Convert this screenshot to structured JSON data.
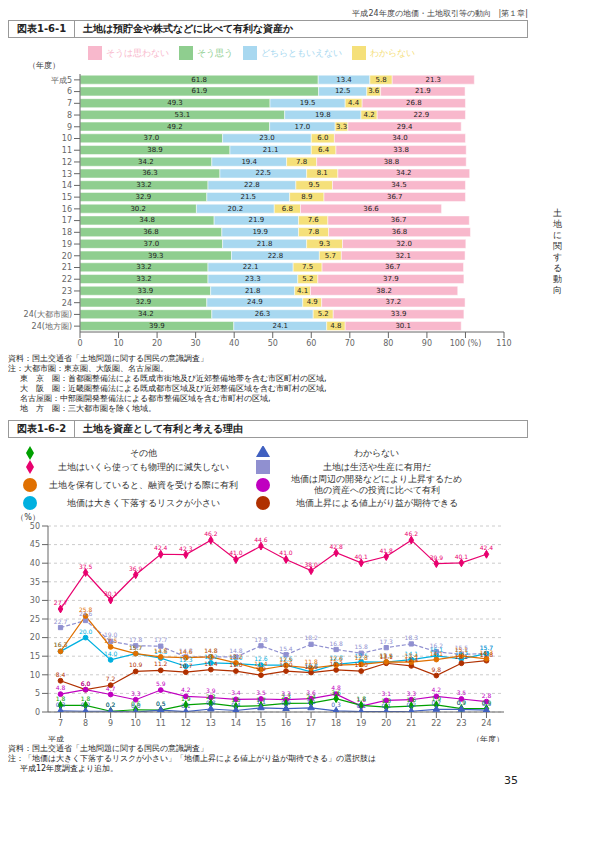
{
  "annotations": [
    "平成24年度の地価・土地取引等の動向　|第１章|",
    "土\n地\nに\n関\nす\nる\n動\n向",
    "35"
  ],
  "chart_data": [
    {
      "type": "bar",
      "orientation": "horizontal",
      "stacked": true,
      "data_labels": true,
      "title": "図表1-6-1",
      "subtitle": "土地は預貯金や株式などに比べて有利な資産か",
      "y_label": "（年度）",
      "categories": [
        "平成5",
        "6",
        "7",
        "8",
        "9",
        "10",
        "11",
        "12",
        "13",
        "14",
        "15",
        "16",
        "17",
        "18",
        "19",
        "20",
        "21",
        "22",
        "23",
        "24",
        "24(大都市圏)",
        "24(地方圏)"
      ],
      "xlim": [
        0,
        110
      ],
      "xticks": [
        0,
        10,
        20,
        30,
        40,
        50,
        60,
        70,
        80,
        90,
        {
          "value": 100,
          "label": "100 (%)"
        },
        110
      ],
      "series": [
        {
          "name": "そう思う",
          "color": "#8fce8f",
          "values": [
            61.8,
            61.9,
            49.3,
            53.1,
            49.2,
            37.0,
            38.9,
            34.2,
            36.3,
            33.2,
            32.9,
            30.2,
            34.8,
            36.8,
            37.0,
            39.3,
            33.2,
            33.2,
            33.9,
            32.9,
            34.2,
            39.9
          ],
          "value_labels": [
            "61.8",
            "61.9",
            "49.3",
            "53.1",
            "49.2",
            "37.0",
            "38.9",
            "34.2",
            "36.3",
            "33.2",
            "32.9",
            "30.2",
            "34.8",
            "36.8",
            "37.0",
            "39.3",
            "33.2",
            "33.2",
            "33.9",
            "32.9",
            "34.2",
            "39.9"
          ]
        },
        {
          "name": "どちらともいえない",
          "color": "#a8d8f0",
          "values": [
            13.4,
            12.5,
            19.5,
            19.8,
            17.0,
            23.0,
            21.1,
            19.4,
            22.5,
            22.8,
            21.5,
            20.2,
            21.9,
            19.9,
            21.8,
            22.8,
            22.1,
            23.3,
            21.8,
            24.9,
            26.3,
            24.1
          ],
          "value_labels": [
            "13.4",
            "12.5",
            "19.5",
            "19.8",
            "17.0",
            "23.0",
            "21.1",
            "19.4",
            "22.5",
            "22.8",
            "21.5",
            "20.2",
            "21.9",
            "19.9",
            "21.8",
            "22.8",
            "22.1",
            "23.3",
            "21.8",
            "24.9",
            "26.3",
            "24.1"
          ]
        },
        {
          "name": "わからない",
          "color": "#f5e07a",
          "values": [
            5.8,
            3.6,
            4.4,
            4.2,
            3.3,
            6.0,
            6.4,
            7.8,
            8.1,
            9.5,
            8.9,
            6.8,
            7.6,
            7.8,
            9.3,
            5.7,
            7.5,
            5.2,
            4.1,
            4.9,
            5.2,
            4.8
          ],
          "value_labels": [
            "5.8",
            "3.6",
            "4.4",
            "4.2",
            "3.3",
            "6.0",
            "6.4",
            "7.8",
            "8.1",
            "9.5",
            "8.9",
            "6.8",
            "7.6",
            "7.8",
            "9.3",
            "5.7",
            "7.5",
            "5.2",
            "4.1",
            "4.9",
            "5.2",
            "4.8"
          ]
        },
        {
          "name": "そうは思わない",
          "color": "#f8b8cc",
          "values": [
            21.3,
            21.9,
            26.8,
            22.9,
            29.4,
            34.0,
            33.8,
            38.8,
            34.2,
            34.5,
            36.7,
            36.6,
            36.7,
            36.8,
            32.0,
            32.1,
            36.7,
            37.9,
            38.2,
            37.2,
            33.9,
            30.1
          ],
          "value_labels": [
            "21.3",
            "21.9",
            "26.8",
            "22.9",
            "29.4",
            "34.0",
            "33.8",
            "38.8",
            "34.2",
            "34.5",
            "36.7",
            "36.6",
            "36.7",
            "36.8",
            "32.0",
            "32.1",
            "36.7",
            "37.9",
            "38.2",
            "37.2",
            "33.9",
            "30.1"
          ]
        }
      ],
      "annotations": [
        "資料：国土交通省「土地問題に関する国民の意識調査」",
        "注：大都市圏：東京圏、大阪圏、名古屋圏。",
        "東　京　圏：首都圏整備法による既成市街地及び近郊整備地帯を含む市区町村の区域,",
        "大　阪　圏：近畿圏整備法による既成都市区域及び近郊整備区域を含む市町村の区域,",
        "名古屋圏：中部圏開発整備法による都市整備区域を含む市町村の区域,",
        "地　方　圏：三大都市圏を除く地域。"
      ]
    },
    {
      "type": "line",
      "data_labels": true,
      "grid": "y",
      "title": "図表1-6-2",
      "subtitle": "土地を資産として有利と考える理由",
      "y_label": "（%）",
      "x_label": "（年度）",
      "x_prefix_label": "平成",
      "x": [
        7,
        8,
        9,
        10,
        11,
        12,
        13,
        14,
        15,
        16,
        17,
        18,
        19,
        20,
        21,
        22,
        23,
        24
      ],
      "xlim": [
        6.5,
        24.7
      ],
      "xticks": [
        7,
        8,
        9,
        10,
        11,
        12,
        13,
        14,
        15,
        16,
        17,
        18,
        19,
        20,
        21,
        22,
        23,
        24
      ],
      "ylim": [
        0,
        50
      ],
      "yticks": [
        0,
        5,
        10,
        15,
        20,
        25,
        30,
        35,
        40,
        45,
        50
      ],
      "series": [
        {
          "name": "土地はいくら使っても物理的に滅失しない",
          "color": "#e8006e",
          "marker": "diamond",
          "line_style": "solid",
          "values": [
            27.7,
            37.5,
            30.1,
            36.9,
            42.4,
            42.3,
            46.2,
            41.0,
            44.6,
            41.0,
            38.0,
            42.8,
            40.1,
            41.8,
            46.2,
            39.9,
            40.1,
            42.4
          ],
          "value_labels": [
            "27.7",
            "37.5",
            "30.1",
            "36.9",
            "42.4",
            "42.3",
            "46.2",
            "41.0",
            "44.6",
            "41.0",
            "38.0",
            "42.8",
            "40.1",
            "41.8",
            "46.2",
            "39.9",
            "40.1",
            "42.4"
          ]
        },
        {
          "name": "土地は生活や生産に有用だ",
          "color": "#9090d0",
          "marker": "square",
          "line_style": "dashed",
          "values": [
            22.7,
            24.6,
            19.0,
            17.8,
            17.7,
            14.8,
            14.8,
            14.8,
            17.8,
            15.4,
            18.2,
            16.8,
            15.8,
            17.3,
            18.3,
            16.2,
            15.5,
            15.7
          ],
          "value_labels": [
            "22.7",
            "24.6",
            "19.0",
            "17.8",
            "17.7",
            "14.8",
            "14.8",
            "14.8",
            "17.8",
            "15.4",
            "18.2",
            "16.8",
            "15.8",
            "17.3",
            "18.3",
            "16.2",
            "15.5",
            "15.7"
          ]
        },
        {
          "name": "地価は大きく下落するリスクが小さい",
          "color": "#00b0e0",
          "marker": "circle",
          "line_style": "solid",
          "values": [
            16.3,
            20.0,
            14.0,
            15.7,
            14.5,
            12.3,
            13.2,
            13.0,
            12.6,
            12.6,
            10.8,
            12.8,
            13.5,
            13.4,
            14.1,
            15.1,
            14.3,
            15.7
          ],
          "value_labels": [
            "16.3",
            "20.0",
            "14.0",
            "15.7",
            "14.5",
            "12.3",
            "13.2",
            "13.0",
            "12.6",
            "12.6",
            "10.8",
            "12.8",
            "13.5",
            "13.4",
            "14.1",
            "15.1",
            "14.3",
            "15.7"
          ]
        },
        {
          "name": "地価上昇による値上がり益が期待できる",
          "color": "#b03000",
          "marker": "circle",
          "line_style": "solid",
          "values": [
            8.4,
            6.0,
            7.2,
            10.9,
            11.2,
            10.7,
            11.4,
            11.0,
            9.9,
            11.0,
            10.6,
            11.3,
            11.0,
            13.1,
            12.4,
            9.8,
            13.1,
            13.8
          ],
          "value_labels": [
            "8.4",
            "6.0",
            "7.2",
            "10.9",
            "11.2",
            "10.7",
            "11.4",
            "11.0",
            "9.9",
            "11.0",
            "10.6",
            "11.3",
            "11.0",
            "13.1",
            "12.4",
            "9.8",
            "13.1",
            "13.8"
          ]
        },
        {
          "name": "土地を保有していると、融資を受ける際に有利",
          "color": "#e07000",
          "marker": "circle",
          "line_style": "solid",
          "values": [
            16.3,
            25.8,
            17.5,
            15.7,
            14.8,
            14.6,
            14.8,
            13.2,
            11.4,
            12.5,
            11.8,
            12.6,
            12.8,
            13.5,
            13.4,
            14.1,
            15.1,
            14.3
          ],
          "value_labels": [
            "16.3",
            "25.8",
            "17.5",
            "15.7",
            "14.8",
            "14.6",
            "14.8",
            "13.2",
            "11.4",
            "12.5",
            "11.8",
            "12.6",
            "12.8",
            "13.5",
            "13.4",
            "14.1",
            "15.1",
            "14.3"
          ]
        },
        {
          "name": "地価は周辺の開発などにより上昇するため\n他の資産への投資に比べて有利",
          "color": "#c000c0",
          "marker": "circle",
          "line_style": "solid",
          "values": [
            4.8,
            6.0,
            4.7,
            3.3,
            5.9,
            4.2,
            3.9,
            3.4,
            3.5,
            3.3,
            3.6,
            4.8,
            1.6,
            3.1,
            3.3,
            4.2,
            3.5,
            2.8
          ],
          "value_labels": [
            "4.8",
            "6.0",
            "4.7",
            "3.3",
            "5.9",
            "4.2",
            "3.9",
            "3.4",
            "3.5",
            "3.3",
            "3.6",
            "4.8",
            "1.6",
            "3.1",
            "3.3",
            "4.2",
            "3.5",
            "2.8"
          ]
        },
        {
          "name": "その他",
          "color": "#00a000",
          "marker": "diamond",
          "line_style": "solid",
          "values": [
            1.8,
            1.8,
            0.2,
            0.6,
            0.5,
            1.9,
            2.3,
            1.5,
            1.7,
            2.3,
            2.4,
            3.6,
            1.8,
            1.3,
            1.6,
            1.9,
            0.9,
            0.9
          ],
          "value_labels": [
            "1.8",
            "1.8",
            "0.2",
            "0.6",
            "0.5",
            "1.9",
            "2.3",
            "1.5",
            "1.7",
            "2.3",
            "2.4",
            "3.6",
            "1.8",
            "1.3",
            "1.6",
            "1.9",
            "0.9",
            "0.9"
          ]
        },
        {
          "name": "わからない",
          "color": "#4060c0",
          "marker": "triangle",
          "line_style": "solid",
          "values": [
            0.3,
            0.2,
            0.2,
            0.0,
            0.5,
            0.1,
            0.8,
            0.4,
            1.1,
            0.9,
            1.1,
            0.3,
            0.1,
            0.1,
            0.2,
            0.7,
            0.7,
            0.5
          ],
          "value_labels": [
            "0.3",
            "0.2",
            "0.2",
            "0.0",
            "0.5",
            "0.1",
            "0.8",
            "0.4",
            "1.1",
            "0.9",
            "1.1",
            "0.3",
            "0.1",
            "0.1",
            "0.2",
            "0.7",
            "0.7",
            "0.5"
          ]
        }
      ],
      "annotations": [
        "資料：国土交通省「土地問題に関する国民の意識調査」",
        "注：「地価は大きく下落するリスクが小さい」「地価上昇による値上がり益が期待できる」の選択肢は",
        "平成12年度調査より追加。"
      ]
    }
  ]
}
